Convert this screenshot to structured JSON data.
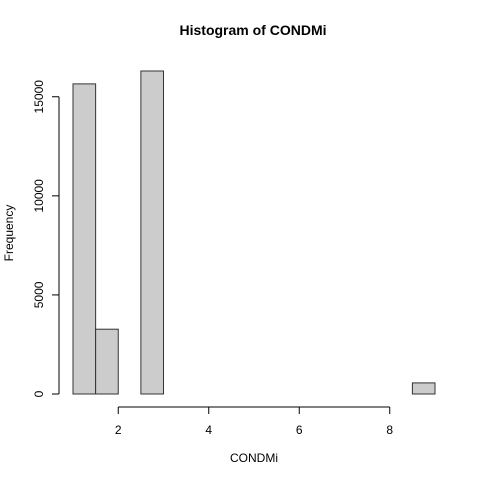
{
  "chart_data": {
    "type": "bar",
    "title": "Histogram of CONDMi",
    "xlabel": "CONDMi",
    "ylabel": "Frequency",
    "bins": [
      {
        "x0": 1.0,
        "x1": 1.5,
        "count": 15650
      },
      {
        "x0": 1.5,
        "x1": 2.0,
        "count": 3270
      },
      {
        "x0": 2.0,
        "x1": 2.5,
        "count": 0
      },
      {
        "x0": 2.5,
        "x1": 3.0,
        "count": 16300
      },
      {
        "x0": 3.0,
        "x1": 3.5,
        "count": 0
      },
      {
        "x0": 3.5,
        "x1": 4.0,
        "count": 0
      },
      {
        "x0": 4.0,
        "x1": 4.5,
        "count": 0
      },
      {
        "x0": 4.5,
        "x1": 5.0,
        "count": 0
      },
      {
        "x0": 5.0,
        "x1": 5.5,
        "count": 0
      },
      {
        "x0": 5.5,
        "x1": 6.0,
        "count": 0
      },
      {
        "x0": 6.0,
        "x1": 6.5,
        "count": 0
      },
      {
        "x0": 6.5,
        "x1": 7.0,
        "count": 0
      },
      {
        "x0": 7.0,
        "x1": 7.5,
        "count": 0
      },
      {
        "x0": 7.5,
        "x1": 8.0,
        "count": 0
      },
      {
        "x0": 8.0,
        "x1": 8.5,
        "count": 0
      },
      {
        "x0": 8.5,
        "x1": 9.0,
        "count": 560
      }
    ],
    "xticks": [
      2,
      4,
      6,
      8
    ],
    "yticks": [
      0,
      5000,
      10000,
      15000
    ],
    "xlim": [
      1,
      9
    ],
    "ylim": [
      0,
      16300
    ],
    "grid": false,
    "bar_fill": "#cccccc",
    "bar_stroke": "#333333"
  }
}
